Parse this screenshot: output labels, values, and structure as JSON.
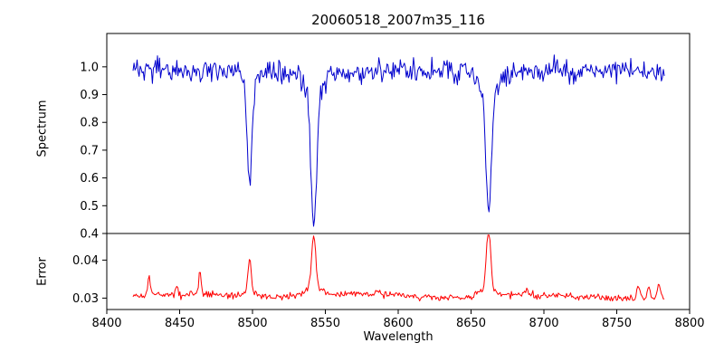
{
  "title": "20060518_2007m35_116",
  "chart_data": [
    {
      "type": "line",
      "name": "spectrum",
      "color": "#0000cd",
      "ylabel": "Spectrum",
      "xlim": [
        8400,
        8800
      ],
      "ylim": [
        0.4,
        1.12
      ],
      "ytick_values": [
        1.0,
        0.9,
        0.8,
        0.7,
        0.6,
        0.5,
        0.4
      ],
      "ytick_labels": [
        "1.0",
        "0.9",
        "0.8",
        "0.7",
        "0.6",
        "0.5",
        "0.4"
      ],
      "x_start": 8418,
      "x_end": 8783,
      "x_step": 0.7,
      "continuum": 0.985,
      "noise_sigma": 0.021,
      "absorption_lines": [
        {
          "center": 8498.0,
          "depth": 0.36,
          "sigma": 1.6,
          "wing_depth": 0.045,
          "wing_sigma": 6,
          "min_value": 0.61
        },
        {
          "center": 8542.1,
          "depth": 0.49,
          "sigma": 2.0,
          "wing_depth": 0.06,
          "wing_sigma": 7,
          "min_value": 0.44
        },
        {
          "center": 8662.1,
          "depth": 0.45,
          "sigma": 1.9,
          "wing_depth": 0.055,
          "wing_sigma": 7,
          "min_value": 0.48
        }
      ],
      "grid": false,
      "legend": "none"
    },
    {
      "type": "line",
      "name": "error",
      "color": "#ff0000",
      "ylabel": "Error",
      "xlabel": "Wavelength",
      "xlim": [
        8400,
        8800
      ],
      "ylim": [
        0.027,
        0.047
      ],
      "xtick_values": [
        8400,
        8450,
        8500,
        8550,
        8600,
        8650,
        8700,
        8750,
        8800
      ],
      "ytick_values": [
        0.04,
        0.03
      ],
      "ytick_labels": [
        "0.04",
        "0.03"
      ],
      "x_start": 8418,
      "x_end": 8783,
      "x_step": 0.7,
      "baseline": 0.0305,
      "noise_sigma": 0.00045,
      "peaks": [
        {
          "center": 8429,
          "height": 0.0045,
          "sigma": 1.0,
          "wing_height": 0,
          "wing_sigma": 4
        },
        {
          "center": 8448,
          "height": 0.002,
          "sigma": 0.9,
          "wing_height": 0,
          "wing_sigma": 4
        },
        {
          "center": 8464,
          "height": 0.006,
          "sigma": 0.9,
          "wing_height": 0,
          "wing_sigma": 4
        },
        {
          "center": 8498,
          "height": 0.009,
          "sigma": 1.1,
          "wing_height": 0.001,
          "wing_sigma": 5
        },
        {
          "center": 8542,
          "height": 0.0145,
          "sigma": 1.4,
          "wing_height": 0.002,
          "wing_sigma": 6
        },
        {
          "center": 8662,
          "height": 0.0165,
          "sigma": 1.4,
          "wing_height": 0.002,
          "wing_sigma": 6
        },
        {
          "center": 8688,
          "height": 0.0015,
          "sigma": 1.0,
          "wing_height": 0,
          "wing_sigma": 4
        },
        {
          "center": 8765,
          "height": 0.0035,
          "sigma": 1.2,
          "wing_height": 0,
          "wing_sigma": 4
        },
        {
          "center": 8772,
          "height": 0.003,
          "sigma": 1.0,
          "wing_height": 0,
          "wing_sigma": 4
        },
        {
          "center": 8779,
          "height": 0.0042,
          "sigma": 1.0,
          "wing_height": 0,
          "wing_sigma": 4
        }
      ],
      "grid": false,
      "legend": "none"
    }
  ]
}
